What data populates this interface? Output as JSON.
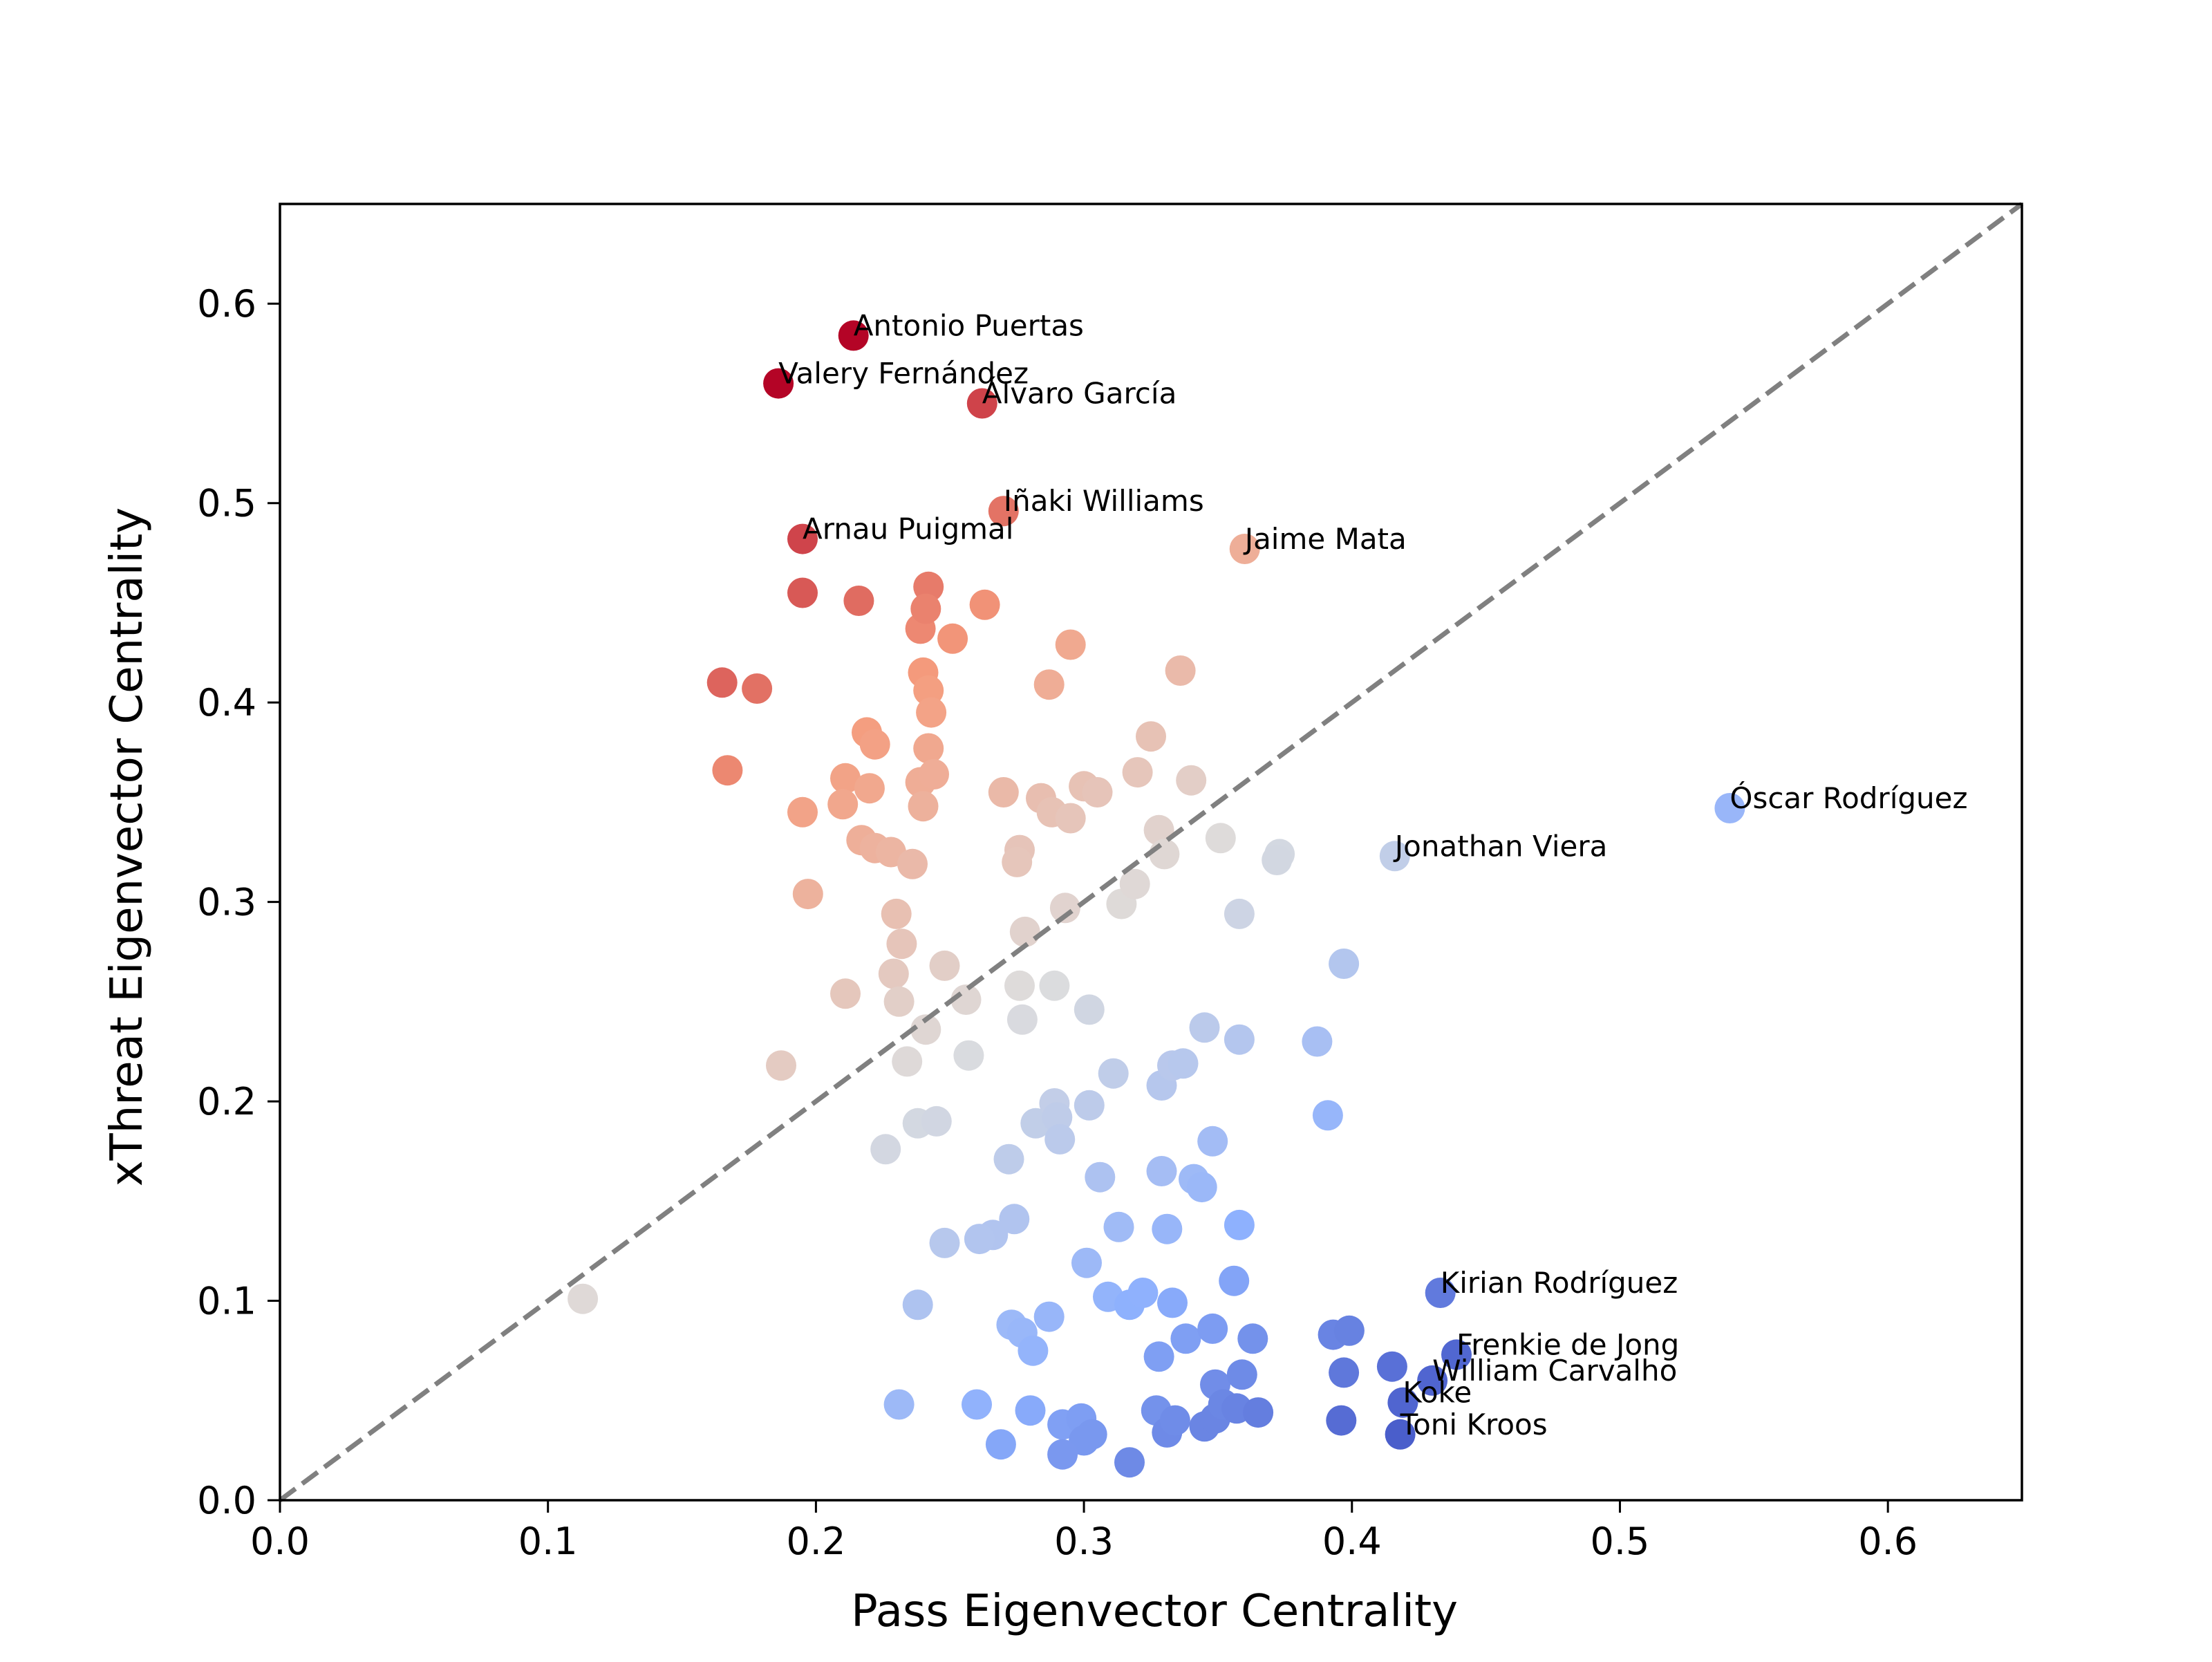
{
  "chart_data": {
    "type": "scatter",
    "xlabel": "Pass Eigenvector Centrality",
    "ylabel": "xThreat Eigenvector Centrality",
    "xlim": [
      0,
      0.65
    ],
    "ylim": [
      0,
      0.65
    ],
    "grid": false,
    "reference_line": {
      "from": [
        0,
        0
      ],
      "to": [
        0.65,
        0.65
      ],
      "style": "dashed",
      "color": "#808080"
    },
    "colormap": "coolwarm",
    "color_by": "y - x",
    "color_range": [
      -0.42,
      0.37
    ],
    "x_ticks": [
      0.0,
      0.1,
      0.2,
      0.3,
      0.4,
      0.5,
      0.6
    ],
    "x_tick_labels": [
      "0.0",
      "0.1",
      "0.2",
      "0.3",
      "0.4",
      "0.5",
      "0.6"
    ],
    "y_ticks": [
      0.0,
      0.1,
      0.2,
      0.3,
      0.4,
      0.5,
      0.6
    ],
    "y_tick_labels": [
      "0.0",
      "0.1",
      "0.2",
      "0.3",
      "0.4",
      "0.5",
      "0.6"
    ],
    "labeled_points": [
      {
        "label": "Antonio Puertas",
        "x": 0.214,
        "y": 0.584
      },
      {
        "label": "Valery Fernández",
        "x": 0.186,
        "y": 0.56
      },
      {
        "label": "Álvaro García",
        "x": 0.262,
        "y": 0.55
      },
      {
        "label": "Iñaki Williams",
        "x": 0.27,
        "y": 0.496
      },
      {
        "label": "Arnau Puigmal",
        "x": 0.195,
        "y": 0.482
      },
      {
        "label": "Jaime Mata",
        "x": 0.36,
        "y": 0.477
      },
      {
        "label": "Óscar Rodríguez",
        "x": 0.541,
        "y": 0.347
      },
      {
        "label": "Jonathan Viera",
        "x": 0.416,
        "y": 0.323
      },
      {
        "label": "Kirian Rodríguez",
        "x": 0.433,
        "y": 0.104
      },
      {
        "label": "Frenkie de Jong",
        "x": 0.439,
        "y": 0.073
      },
      {
        "label": "William Carvalho",
        "x": 0.43,
        "y": 0.06
      },
      {
        "label": "Koke",
        "x": 0.419,
        "y": 0.049
      },
      {
        "label": "Toni Kroos",
        "x": 0.418,
        "y": 0.033
      }
    ],
    "points": [
      [
        0.165,
        0.41
      ],
      [
        0.178,
        0.407
      ],
      [
        0.167,
        0.366
      ],
      [
        0.195,
        0.455
      ],
      [
        0.216,
        0.451
      ],
      [
        0.242,
        0.458
      ],
      [
        0.263,
        0.449
      ],
      [
        0.239,
        0.437
      ],
      [
        0.241,
        0.447
      ],
      [
        0.251,
        0.432
      ],
      [
        0.295,
        0.429
      ],
      [
        0.24,
        0.415
      ],
      [
        0.242,
        0.406
      ],
      [
        0.243,
        0.395
      ],
      [
        0.287,
        0.409
      ],
      [
        0.336,
        0.416
      ],
      [
        0.219,
        0.385
      ],
      [
        0.222,
        0.379
      ],
      [
        0.242,
        0.377
      ],
      [
        0.325,
        0.383
      ],
      [
        0.211,
        0.362
      ],
      [
        0.22,
        0.357
      ],
      [
        0.239,
        0.36
      ],
      [
        0.244,
        0.364
      ],
      [
        0.27,
        0.355
      ],
      [
        0.284,
        0.352
      ],
      [
        0.3,
        0.358
      ],
      [
        0.305,
        0.355
      ],
      [
        0.32,
        0.365
      ],
      [
        0.34,
        0.361
      ],
      [
        0.195,
        0.345
      ],
      [
        0.21,
        0.349
      ],
      [
        0.24,
        0.348
      ],
      [
        0.288,
        0.345
      ],
      [
        0.295,
        0.342
      ],
      [
        0.217,
        0.331
      ],
      [
        0.222,
        0.327
      ],
      [
        0.228,
        0.325
      ],
      [
        0.236,
        0.319
      ],
      [
        0.276,
        0.326
      ],
      [
        0.275,
        0.32
      ],
      [
        0.328,
        0.336
      ],
      [
        0.33,
        0.324
      ],
      [
        0.351,
        0.332
      ],
      [
        0.373,
        0.324
      ],
      [
        0.372,
        0.321
      ],
      [
        0.197,
        0.304
      ],
      [
        0.23,
        0.294
      ],
      [
        0.293,
        0.297
      ],
      [
        0.314,
        0.299
      ],
      [
        0.319,
        0.309
      ],
      [
        0.358,
        0.294
      ],
      [
        0.232,
        0.279
      ],
      [
        0.278,
        0.285
      ],
      [
        0.229,
        0.264
      ],
      [
        0.248,
        0.268
      ],
      [
        0.211,
        0.254
      ],
      [
        0.231,
        0.25
      ],
      [
        0.256,
        0.251
      ],
      [
        0.276,
        0.258
      ],
      [
        0.289,
        0.258
      ],
      [
        0.302,
        0.246
      ],
      [
        0.397,
        0.269
      ],
      [
        0.187,
        0.218
      ],
      [
        0.234,
        0.22
      ],
      [
        0.241,
        0.236
      ],
      [
        0.257,
        0.223
      ],
      [
        0.277,
        0.241
      ],
      [
        0.311,
        0.214
      ],
      [
        0.329,
        0.208
      ],
      [
        0.333,
        0.218
      ],
      [
        0.337,
        0.219
      ],
      [
        0.345,
        0.237
      ],
      [
        0.358,
        0.231
      ],
      [
        0.387,
        0.23
      ],
      [
        0.226,
        0.176
      ],
      [
        0.238,
        0.189
      ],
      [
        0.245,
        0.19
      ],
      [
        0.272,
        0.171
      ],
      [
        0.282,
        0.189
      ],
      [
        0.289,
        0.199
      ],
      [
        0.29,
        0.192
      ],
      [
        0.291,
        0.181
      ],
      [
        0.302,
        0.198
      ],
      [
        0.348,
        0.18
      ],
      [
        0.391,
        0.193
      ],
      [
        0.306,
        0.162
      ],
      [
        0.329,
        0.165
      ],
      [
        0.341,
        0.161
      ],
      [
        0.344,
        0.157
      ],
      [
        0.274,
        0.141
      ],
      [
        0.266,
        0.133
      ],
      [
        0.261,
        0.131
      ],
      [
        0.248,
        0.129
      ],
      [
        0.313,
        0.137
      ],
      [
        0.331,
        0.136
      ],
      [
        0.358,
        0.138
      ],
      [
        0.301,
        0.119
      ],
      [
        0.309,
        0.102
      ],
      [
        0.317,
        0.098
      ],
      [
        0.322,
        0.104
      ],
      [
        0.333,
        0.099
      ],
      [
        0.356,
        0.11
      ],
      [
        0.238,
        0.098
      ],
      [
        0.273,
        0.088
      ],
      [
        0.277,
        0.084
      ],
      [
        0.281,
        0.075
      ],
      [
        0.287,
        0.092
      ],
      [
        0.328,
        0.072
      ],
      [
        0.338,
        0.081
      ],
      [
        0.348,
        0.086
      ],
      [
        0.363,
        0.081
      ],
      [
        0.393,
        0.083
      ],
      [
        0.399,
        0.085
      ],
      [
        0.397,
        0.064
      ],
      [
        0.415,
        0.067
      ],
      [
        0.231,
        0.048
      ],
      [
        0.26,
        0.048
      ],
      [
        0.28,
        0.045
      ],
      [
        0.269,
        0.028
      ],
      [
        0.292,
        0.038
      ],
      [
        0.299,
        0.041
      ],
      [
        0.303,
        0.033
      ],
      [
        0.3,
        0.03
      ],
      [
        0.292,
        0.023
      ],
      [
        0.317,
        0.019
      ],
      [
        0.327,
        0.045
      ],
      [
        0.331,
        0.034
      ],
      [
        0.334,
        0.04
      ],
      [
        0.345,
        0.037
      ],
      [
        0.349,
        0.041
      ],
      [
        0.349,
        0.058
      ],
      [
        0.352,
        0.048
      ],
      [
        0.357,
        0.046
      ],
      [
        0.359,
        0.063
      ],
      [
        0.365,
        0.044
      ],
      [
        0.396,
        0.04
      ],
      [
        0.113,
        0.101
      ]
    ]
  }
}
